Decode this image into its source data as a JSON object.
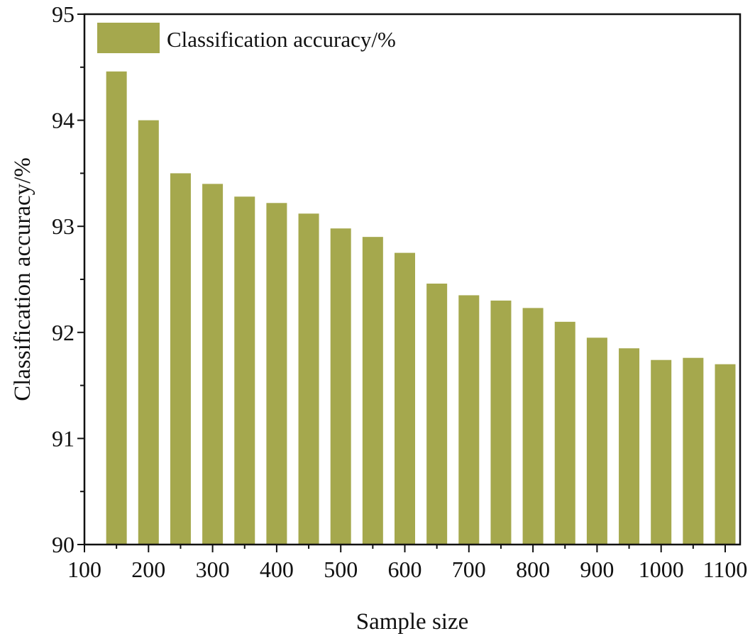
{
  "chart_data": {
    "type": "bar",
    "title": "",
    "xlabel": "Sample size",
    "ylabel": "Classification accuracy/%",
    "x": [
      150,
      200,
      250,
      300,
      350,
      400,
      450,
      500,
      550,
      600,
      650,
      700,
      750,
      800,
      850,
      900,
      950,
      1000,
      1050,
      1100
    ],
    "series": [
      {
        "name": "Classification accuracy/%",
        "color": "#a5a84d",
        "values": [
          94.46,
          94.0,
          93.5,
          93.4,
          93.28,
          93.22,
          93.12,
          92.98,
          92.9,
          92.75,
          92.46,
          92.35,
          92.3,
          92.23,
          92.1,
          91.95,
          91.85,
          91.74,
          91.76,
          91.7
        ]
      }
    ],
    "xlim": [
      100,
      1120
    ],
    "ylim": [
      90,
      95
    ],
    "xticks": [
      "100",
      "200",
      "300",
      "400",
      "500",
      "600",
      "700",
      "800",
      "900",
      "1000",
      "1100"
    ],
    "yticks": [
      "90",
      "91",
      "92",
      "93",
      "94",
      "95"
    ],
    "grid": false,
    "legend_position": "top-left"
  }
}
